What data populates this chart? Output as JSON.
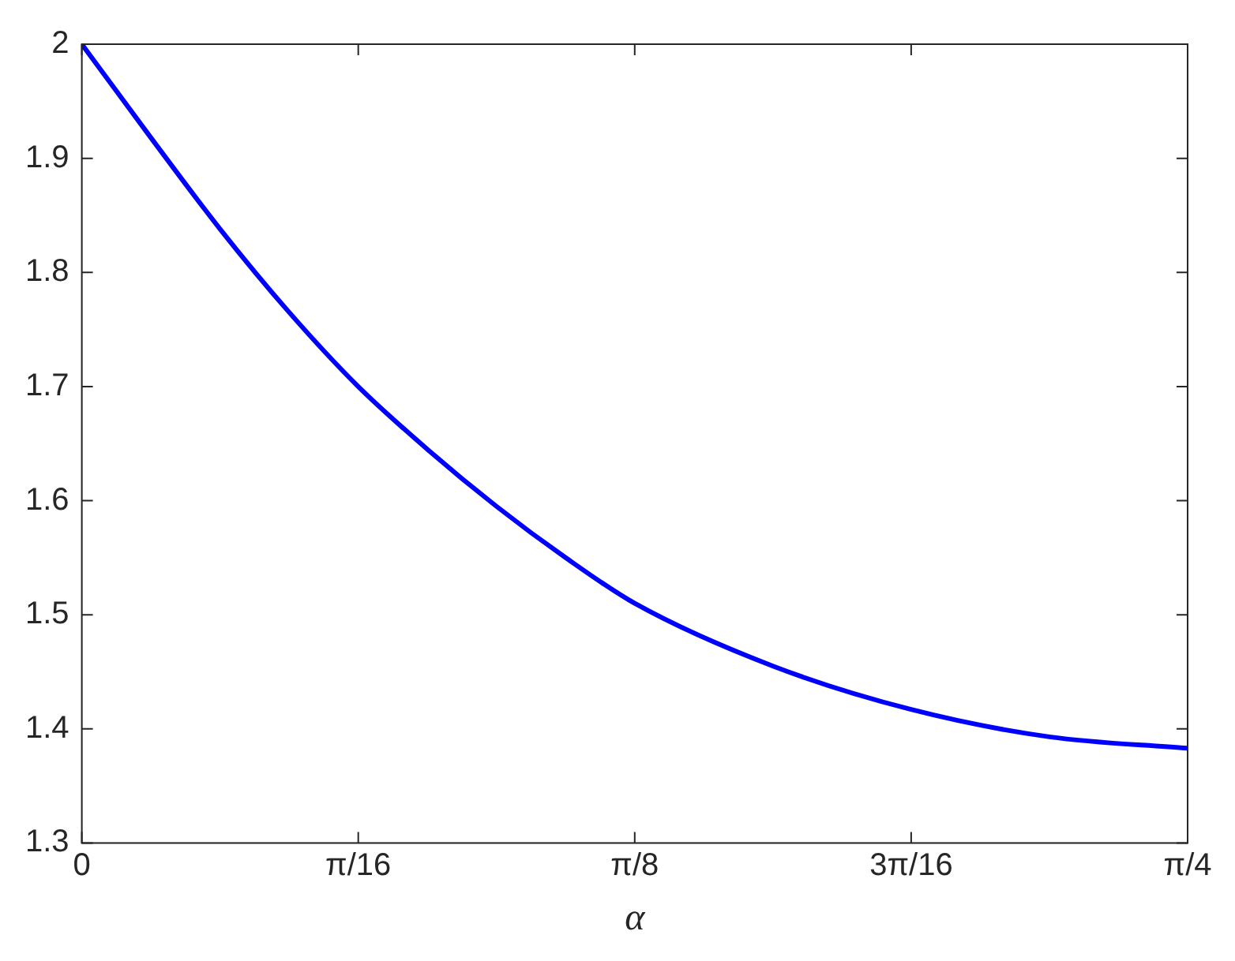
{
  "chart_data": {
    "type": "line",
    "xlabel": "α",
    "x": [
      0,
      0.0491,
      0.0982,
      0.1473,
      0.1963,
      0.2454,
      0.2945,
      0.3436,
      0.3927,
      0.4909,
      0.589,
      0.6872,
      0.7854
    ],
    "series": [
      {
        "color": "#0000ff",
        "values": [
          2,
          1.918,
          1.838,
          1.765,
          1.7,
          1.645,
          1.595,
          1.55,
          1.51,
          1.455,
          1.417,
          1.393,
          1.383
        ]
      }
    ],
    "xlim": [
      0,
      0.7854
    ],
    "xticks": [
      {
        "value": 0,
        "label": "0"
      },
      {
        "value": 0.19635,
        "label": "π/16"
      },
      {
        "value": 0.3927,
        "label": "π/8"
      },
      {
        "value": 0.58905,
        "label": "3π/16"
      },
      {
        "value": 0.7854,
        "label": "π/4"
      }
    ],
    "ylim": [
      1.3,
      2
    ],
    "yticks": [
      1.3,
      1.4,
      1.5,
      1.6,
      1.7,
      1.8,
      1.9,
      2
    ],
    "grid": false,
    "legend": false,
    "marker": "none",
    "line_style": "solid"
  }
}
